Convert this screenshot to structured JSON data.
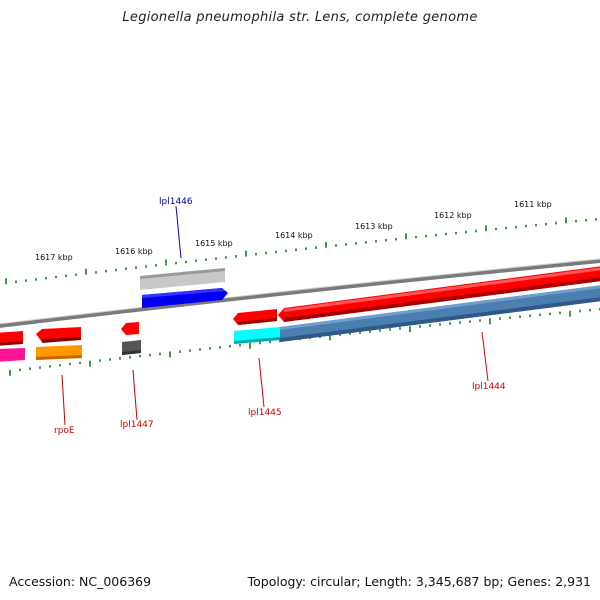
{
  "title": "Legionella pneumophila str. Lens, complete genome",
  "footer": {
    "accession": "Accession: NC_006369",
    "summary": "Topology: circular; Length: 3,345,687 bp; Genes: 2,931"
  },
  "ticks": [
    {
      "label": "1617 kbp"
    },
    {
      "label": "1616 kbp"
    },
    {
      "label": "1615 kbp"
    },
    {
      "label": "1614 kbp"
    },
    {
      "label": "1613 kbp"
    },
    {
      "label": "1612 kbp"
    },
    {
      "label": "1611 kbp"
    }
  ],
  "genes": [
    {
      "label": "lpl1446",
      "color": "#0000aa"
    },
    {
      "label": "rpoE",
      "color": "#cc0000"
    },
    {
      "label": "lpl1447",
      "color": "#cc0000"
    },
    {
      "label": "lpl1445",
      "color": "#cc0000"
    },
    {
      "label": "lpl1444",
      "color": "#cc0000"
    }
  ],
  "colors": {
    "backbone": "#8a8a8a",
    "tick": "#1a7a1a",
    "red_feature": "#ff0000",
    "blue_feature": "#0000ee",
    "steel_feature": "#4a7fb0",
    "cyan_feature": "#00ffff",
    "orange_feature": "#ff9900",
    "magenta_feature": "#ff1493",
    "gray_feature": "#bdbdbd",
    "darkgray_feature": "#555555"
  }
}
